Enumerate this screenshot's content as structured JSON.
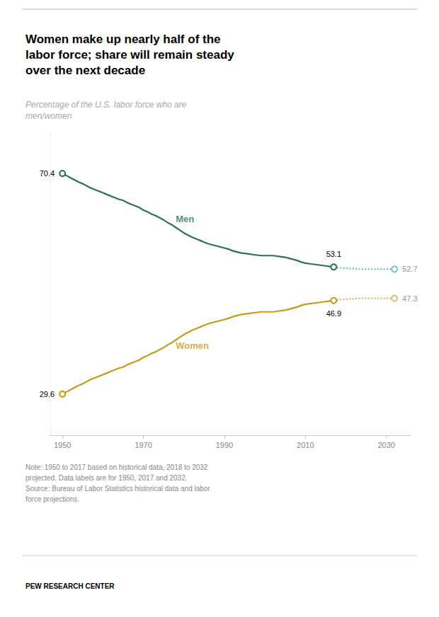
{
  "chart_data": {
    "type": "line",
    "title": "Women make up nearly half of the\nlabor force; share will remain steady\nover the next decade",
    "subtitle": "Percentage of the U.S. labor force who are\nmen/women",
    "note": "Note: 1950 to 2017 based on historical data, 2018 to 2032\nprojected. Data labels are for 1950, 2017 and 2032.",
    "source": "Source: Bureau of Labor Statistics historical data and labor\nforce projections.",
    "footer": "PEW RESEARCH CENTER",
    "xlim": [
      1947,
      2036
    ],
    "xticks": [
      1950,
      1970,
      1990,
      2010,
      2030
    ],
    "ylim": [
      22,
      78
    ],
    "grid": false,
    "tick_labels": "x",
    "series": [
      {
        "color": "#2d6e5e",
        "line_style": "solid",
        "marker": "circle",
        "x": [
          1950,
          1951,
          1952,
          1953,
          1954,
          1955,
          1956,
          1957,
          1958,
          1959,
          1960,
          1961,
          1962,
          1963,
          1964,
          1965,
          1966,
          1967,
          1968,
          1969,
          1970,
          1971,
          1972,
          1973,
          1974,
          1975,
          1976,
          1977,
          1978,
          1979,
          1980,
          1981,
          1982,
          1983,
          1984,
          1985,
          1986,
          1987,
          1988,
          1989,
          1990,
          1991,
          1992,
          1993,
          1994,
          1995,
          1996,
          1997,
          1998,
          1999,
          2000,
          2001,
          2002,
          2003,
          2004,
          2005,
          2006,
          2007,
          2008,
          2009,
          2010,
          2011,
          2012,
          2013,
          2014,
          2015,
          2016,
          2017
        ],
        "values": [
          70.4,
          70.0,
          69.6,
          69.2,
          68.8,
          68.5,
          68.1,
          67.7,
          67.4,
          67.1,
          66.8,
          66.5,
          66.2,
          65.9,
          65.6,
          65.4,
          65.0,
          64.7,
          64.4,
          64.1,
          63.6,
          63.3,
          62.9,
          62.6,
          62.2,
          61.8,
          61.3,
          60.9,
          60.4,
          59.9,
          59.4,
          59.0,
          58.6,
          58.3,
          58.0,
          57.7,
          57.4,
          57.2,
          57.0,
          56.8,
          56.6,
          56.4,
          56.1,
          55.9,
          55.7,
          55.6,
          55.5,
          55.4,
          55.3,
          55.2,
          55.2,
          55.2,
          55.2,
          55.1,
          55.0,
          54.9,
          54.7,
          54.5,
          54.3,
          54.0,
          53.8,
          53.7,
          53.6,
          53.5,
          53.4,
          53.3,
          53.2,
          53.1
        ],
        "value_labels": [
          "70.4",
          null,
          null,
          null,
          null,
          null,
          null,
          null,
          null,
          null,
          null,
          null,
          null,
          null,
          null,
          null,
          null,
          null,
          null,
          null,
          null,
          null,
          null,
          null,
          null,
          null,
          null,
          null,
          null,
          null,
          null,
          null,
          null,
          null,
          null,
          null,
          null,
          null,
          null,
          null,
          null,
          null,
          null,
          null,
          null,
          null,
          null,
          null,
          null,
          null,
          null,
          null,
          null,
          null,
          null,
          null,
          null,
          null,
          null,
          null,
          null,
          null,
          null,
          null,
          null,
          null,
          null,
          "53.1"
        ]
      },
      {
        "color": "#7dc4b8",
        "line_style": "dotted",
        "marker": "circle",
        "x": [
          2017,
          2018,
          2019,
          2020,
          2021,
          2022,
          2023,
          2024,
          2025,
          2026,
          2027,
          2028,
          2029,
          2030,
          2031,
          2032
        ],
        "values": [
          53.1,
          53.0,
          52.9,
          52.9,
          52.8,
          52.8,
          52.7,
          52.7,
          52.7,
          52.7,
          52.7,
          52.7,
          52.7,
          52.7,
          52.7,
          52.7
        ],
        "value_labels": [
          null,
          null,
          null,
          null,
          null,
          null,
          null,
          null,
          null,
          null,
          null,
          null,
          null,
          null,
          null,
          "52.7"
        ]
      },
      {
        "color": "#c49b1a",
        "line_style": "solid",
        "marker": "circle",
        "x": [
          1950,
          1951,
          1952,
          1953,
          1954,
          1955,
          1956,
          1957,
          1958,
          1959,
          1960,
          1961,
          1962,
          1963,
          1964,
          1965,
          1966,
          1967,
          1968,
          1969,
          1970,
          1971,
          1972,
          1973,
          1974,
          1975,
          1976,
          1977,
          1978,
          1979,
          1980,
          1981,
          1982,
          1983,
          1984,
          1985,
          1986,
          1987,
          1988,
          1989,
          1990,
          1991,
          1992,
          1993,
          1994,
          1995,
          1996,
          1997,
          1998,
          1999,
          2000,
          2001,
          2002,
          2003,
          2004,
          2005,
          2006,
          2007,
          2008,
          2009,
          2010,
          2011,
          2012,
          2013,
          2014,
          2015,
          2016,
          2017
        ],
        "values": [
          29.6,
          30.0,
          30.4,
          30.8,
          31.2,
          31.5,
          31.9,
          32.3,
          32.6,
          32.9,
          33.2,
          33.5,
          33.8,
          34.1,
          34.4,
          34.6,
          35.0,
          35.3,
          35.6,
          35.9,
          36.4,
          36.7,
          37.1,
          37.4,
          37.8,
          38.2,
          38.7,
          39.1,
          39.6,
          40.1,
          40.6,
          41.0,
          41.4,
          41.7,
          42.0,
          42.3,
          42.6,
          42.8,
          43.0,
          43.2,
          43.4,
          43.6,
          43.9,
          44.1,
          44.3,
          44.4,
          44.5,
          44.6,
          44.7,
          44.8,
          44.8,
          44.8,
          44.8,
          44.9,
          45.0,
          45.1,
          45.3,
          45.5,
          45.7,
          46.0,
          46.2,
          46.3,
          46.4,
          46.5,
          46.6,
          46.7,
          46.8,
          46.9
        ],
        "value_labels": [
          "29.6",
          null,
          null,
          null,
          null,
          null,
          null,
          null,
          null,
          null,
          null,
          null,
          null,
          null,
          null,
          null,
          null,
          null,
          null,
          null,
          null,
          null,
          null,
          null,
          null,
          null,
          null,
          null,
          null,
          null,
          null,
          null,
          null,
          null,
          null,
          null,
          null,
          null,
          null,
          null,
          null,
          null,
          null,
          null,
          null,
          null,
          null,
          null,
          null,
          null,
          null,
          null,
          null,
          null,
          null,
          null,
          null,
          null,
          null,
          null,
          null,
          null,
          null,
          null,
          null,
          null,
          null,
          "46.9"
        ]
      },
      {
        "color": "#d4bc7a",
        "line_style": "dotted",
        "marker": "circle",
        "x": [
          2017,
          2018,
          2019,
          2020,
          2021,
          2022,
          2023,
          2024,
          2025,
          2026,
          2027,
          2028,
          2029,
          2030,
          2031,
          2032
        ],
        "values": [
          46.9,
          47.0,
          47.1,
          47.1,
          47.2,
          47.2,
          47.3,
          47.3,
          47.3,
          47.3,
          47.3,
          47.3,
          47.3,
          47.3,
          47.3,
          47.3
        ],
        "value_labels": [
          null,
          null,
          null,
          null,
          null,
          null,
          null,
          null,
          null,
          null,
          null,
          null,
          null,
          null,
          null,
          "47.3"
        ]
      }
    ],
    "annotations": [
      {
        "text": "Men",
        "x": 1978,
        "y": 62.0,
        "color": "#2d6e5e"
      },
      {
        "text": "Women",
        "x": 1978,
        "y": 38.5,
        "color": "#c49b1a"
      }
    ]
  }
}
